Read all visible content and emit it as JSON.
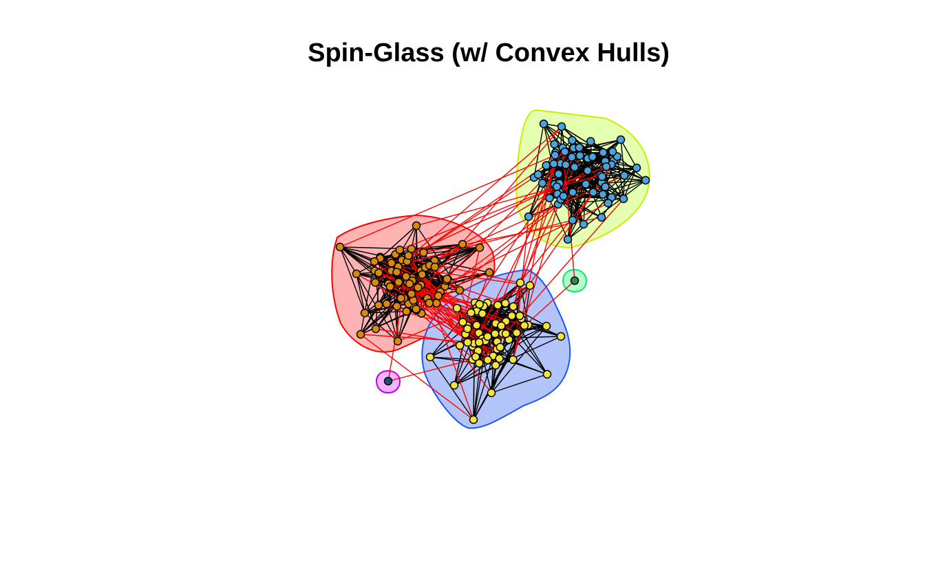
{
  "title": "Spin-Glass (w/ Convex Hulls)",
  "colors": {
    "edge_within": "#000000",
    "edge_between": "#ff0000",
    "node_stroke": "#000000"
  },
  "communities": [
    {
      "name": "community-blue-nodes",
      "node_color": "#4aa3df",
      "hull_fill": "#e4ffb0",
      "hull_stroke": "#c8f000",
      "nodes": 64
    },
    {
      "name": "community-orange-nodes",
      "node_color": "#d98a0c",
      "hull_fill": "#ffb3b3",
      "hull_stroke": "#ff0000",
      "nodes": 70
    },
    {
      "name": "community-yellow-nodes",
      "node_color": "#f2e43a",
      "hull_fill": "#b3c4f8",
      "hull_stroke": "#1a55ff",
      "nodes": 62
    },
    {
      "name": "community-single-green",
      "node_color": "#2e8b57",
      "hull_fill": "#b3ffcc",
      "hull_stroke": "#00ee66",
      "nodes": 1
    },
    {
      "name": "community-single-purple",
      "node_color": "#1f4e79",
      "hull_fill": "#f2b3ff",
      "hull_stroke": "#bb00ee",
      "nodes": 1
    }
  ]
}
